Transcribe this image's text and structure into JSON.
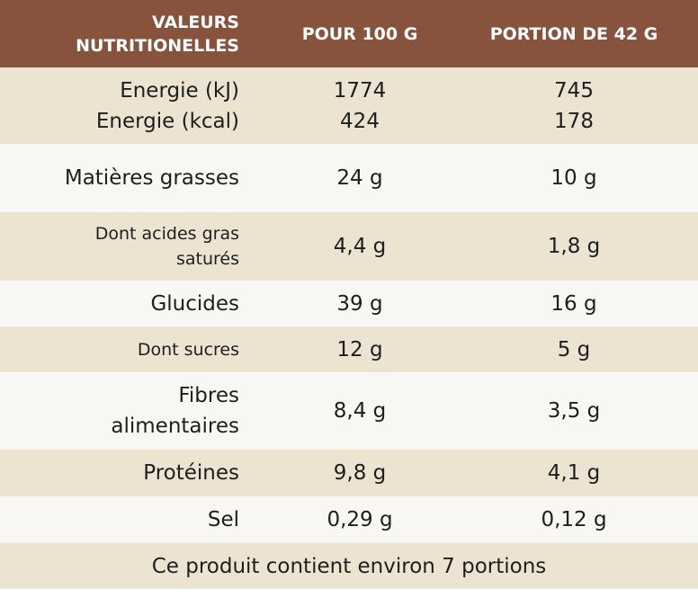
{
  "table": {
    "header": [
      "VALEURS NUTRITIONELLES",
      "POUR 100 G",
      "PORTION DE 42 G"
    ],
    "groups": [
      [
        [
          "Energie (kJ)",
          "1774",
          "745"
        ],
        [
          "Energie (kcal)",
          "424",
          "178"
        ]
      ],
      [
        [
          "Matières grasses",
          "24 g",
          "10 g"
        ]
      ],
      [
        [
          "Dont acides gras saturés",
          "4,4 g",
          "1,8 g"
        ]
      ],
      [
        [
          "Glucides",
          "39 g",
          "16 g"
        ]
      ],
      [
        [
          "Dont sucres",
          "12 g",
          "5 g"
        ]
      ],
      [
        [
          "Fibres alimentaires",
          "8,4 g",
          "3,5 g"
        ]
      ],
      [
        [
          "Protéines",
          "9,8 g",
          "4,1 g"
        ]
      ],
      [
        [
          "Sel",
          "0,29 g",
          "0,12 g"
        ]
      ]
    ],
    "footer": "Ce produit contient environ 7 portions"
  }
}
